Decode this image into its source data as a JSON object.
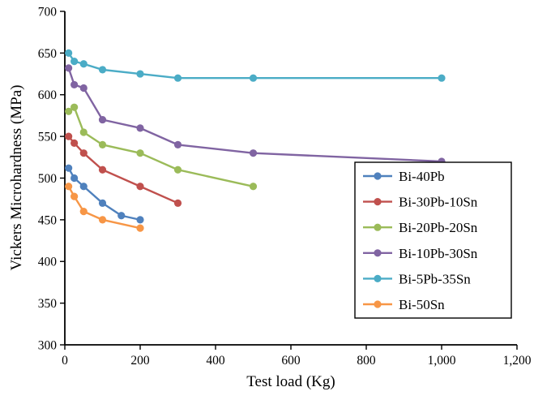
{
  "chart_data": {
    "type": "line",
    "title": "",
    "xlabel": "Test load (Kg)",
    "ylabel": "Vickers Microhardness (MPa)",
    "xlim": [
      0,
      1200
    ],
    "ylim": [
      300,
      700
    ],
    "grid": false,
    "legend_position": "inside-right-middle",
    "axis_color": "#000000",
    "background_color": "#ffffff",
    "xticks": {
      "values": [
        0,
        200,
        400,
        600,
        800,
        1000,
        1200
      ],
      "labels": [
        "0",
        "200",
        "400",
        "600",
        "800",
        "1,000",
        "1,200"
      ]
    },
    "yticks": {
      "values": [
        300,
        350,
        400,
        450,
        500,
        550,
        600,
        650,
        700
      ],
      "labels": [
        "300",
        "350",
        "400",
        "450",
        "500",
        "550",
        "600",
        "650",
        "700"
      ]
    },
    "series": [
      {
        "name": "Bi-40Pb",
        "color": "#4F81BD",
        "x": [
          10,
          25,
          50,
          100,
          150,
          200
        ],
        "y": [
          512,
          500,
          490,
          470,
          455,
          450
        ]
      },
      {
        "name": "Bi-30Pb-10Sn",
        "color": "#C0504D",
        "x": [
          10,
          25,
          50,
          100,
          200,
          300
        ],
        "y": [
          550,
          542,
          530,
          510,
          490,
          470
        ]
      },
      {
        "name": "Bi-20Pb-20Sn",
        "color": "#9BBB59",
        "x": [
          10,
          25,
          50,
          100,
          200,
          300,
          500
        ],
        "y": [
          580,
          585,
          555,
          540,
          530,
          510,
          490
        ]
      },
      {
        "name": "Bi-10Pb-30Sn",
        "color": "#8064A2",
        "x": [
          10,
          25,
          50,
          100,
          200,
          300,
          500,
          1000
        ],
        "y": [
          632,
          612,
          608,
          570,
          560,
          540,
          530,
          520
        ]
      },
      {
        "name": "Bi-5Pb-35Sn",
        "color": "#4BACC6",
        "x": [
          10,
          25,
          50,
          100,
          200,
          300,
          500,
          1000
        ],
        "y": [
          650,
          640,
          637,
          630,
          625,
          620,
          620,
          620
        ]
      },
      {
        "name": "Bi-50Sn",
        "color": "#F79646",
        "x": [
          10,
          25,
          50,
          100,
          200
        ],
        "y": [
          490,
          478,
          460,
          450,
          440
        ]
      }
    ]
  }
}
